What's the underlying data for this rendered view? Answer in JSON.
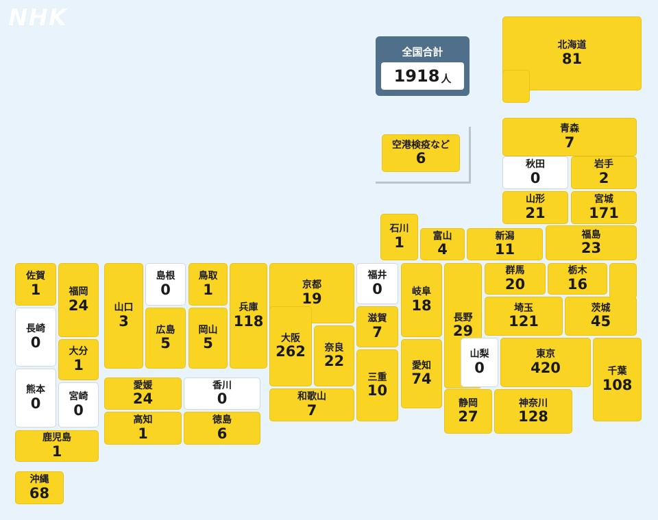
{
  "logo": "NHK",
  "total": {
    "label": "全国合計",
    "count": "1918",
    "unit": "人"
  },
  "airport": {
    "name": "空港検疫など",
    "count": "6"
  },
  "colors": {
    "background": "#e9f3fb",
    "tile_nonzero": "#f9d423",
    "tile_zero": "#ffffff",
    "total_box": "#4f6f8a"
  },
  "prefectures": [
    {
      "name": "北海道",
      "count": "81"
    },
    {
      "name": "青森",
      "count": "7"
    },
    {
      "name": "秋田",
      "count": "0"
    },
    {
      "name": "岩手",
      "count": "2"
    },
    {
      "name": "山形",
      "count": "21"
    },
    {
      "name": "宮城",
      "count": "171"
    },
    {
      "name": "石川",
      "count": "1"
    },
    {
      "name": "富山",
      "count": "4"
    },
    {
      "name": "新潟",
      "count": "11"
    },
    {
      "name": "福島",
      "count": "23"
    },
    {
      "name": "佐賀",
      "count": "1"
    },
    {
      "name": "福岡",
      "count": "24"
    },
    {
      "name": "山口",
      "count": "3"
    },
    {
      "name": "島根",
      "count": "0"
    },
    {
      "name": "鳥取",
      "count": "1"
    },
    {
      "name": "兵庫",
      "count": "118"
    },
    {
      "name": "京都",
      "count": "19"
    },
    {
      "name": "福井",
      "count": "0"
    },
    {
      "name": "岐阜",
      "count": "18"
    },
    {
      "name": "長野",
      "count": "29"
    },
    {
      "name": "群馬",
      "count": "20"
    },
    {
      "name": "栃木",
      "count": "16"
    },
    {
      "name": "長崎",
      "count": "0"
    },
    {
      "name": "広島",
      "count": "5"
    },
    {
      "name": "岡山",
      "count": "5"
    },
    {
      "name": "埼玉",
      "count": "121"
    },
    {
      "name": "茨城",
      "count": "45"
    },
    {
      "name": "滋賀",
      "count": "7"
    },
    {
      "name": "大阪",
      "count": "262"
    },
    {
      "name": "奈良",
      "count": "22"
    },
    {
      "name": "大分",
      "count": "1"
    },
    {
      "name": "愛知",
      "count": "74"
    },
    {
      "name": "山梨",
      "count": "0"
    },
    {
      "name": "東京",
      "count": "420"
    },
    {
      "name": "千葉",
      "count": "108"
    },
    {
      "name": "三重",
      "count": "10"
    },
    {
      "name": "熊本",
      "count": "0"
    },
    {
      "name": "宮崎",
      "count": "0"
    },
    {
      "name": "愛媛",
      "count": "24"
    },
    {
      "name": "香川",
      "count": "0"
    },
    {
      "name": "和歌山",
      "count": "7"
    },
    {
      "name": "静岡",
      "count": "27"
    },
    {
      "name": "神奈川",
      "count": "128"
    },
    {
      "name": "高知",
      "count": "1"
    },
    {
      "name": "徳島",
      "count": "6"
    },
    {
      "name": "鹿児島",
      "count": "1"
    },
    {
      "name": "沖縄",
      "count": "68"
    }
  ]
}
